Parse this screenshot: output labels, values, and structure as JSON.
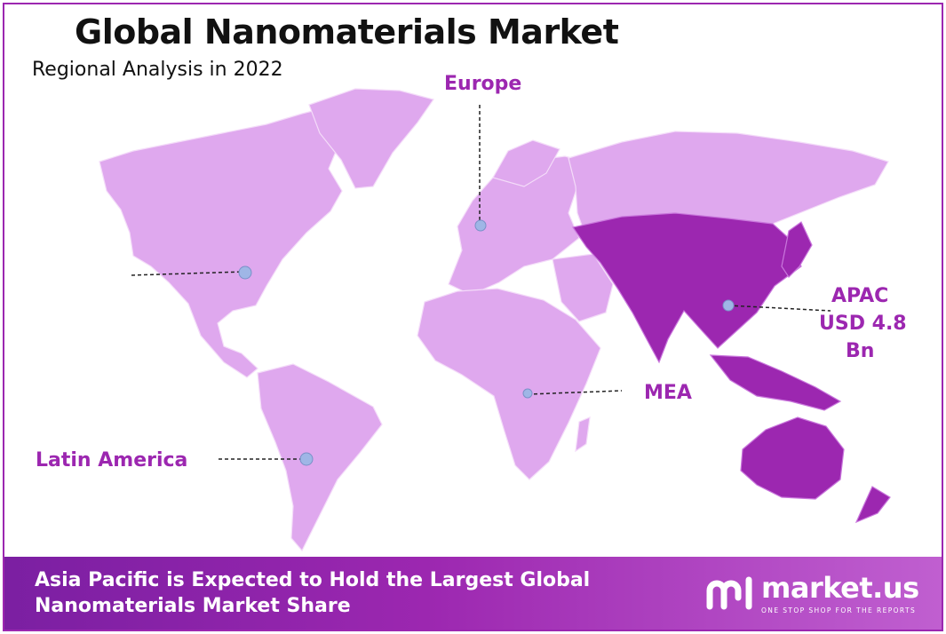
{
  "title": "Global Nanomaterials Market",
  "subtitle": "Regional Analysis in 2022",
  "regions": {
    "europe": "Europe",
    "apac_name": "APAC",
    "apac_value_line1": "USD 4.8",
    "apac_value_line2": "Bn",
    "mea": "MEA",
    "latin_america": "Latin America"
  },
  "footer": {
    "line1": "Asia Pacific is Expected to Hold the Largest Global",
    "line2": "Nanomaterials Market Share"
  },
  "brand": {
    "name": "market.us",
    "tagline": "ONE STOP SHOP FOR THE REPORTS"
  },
  "colors": {
    "land": "#dfa8ee",
    "apac_highlight": "#9c27b0",
    "accent": "#9c27b0",
    "marker": "#9fb6e6"
  }
}
